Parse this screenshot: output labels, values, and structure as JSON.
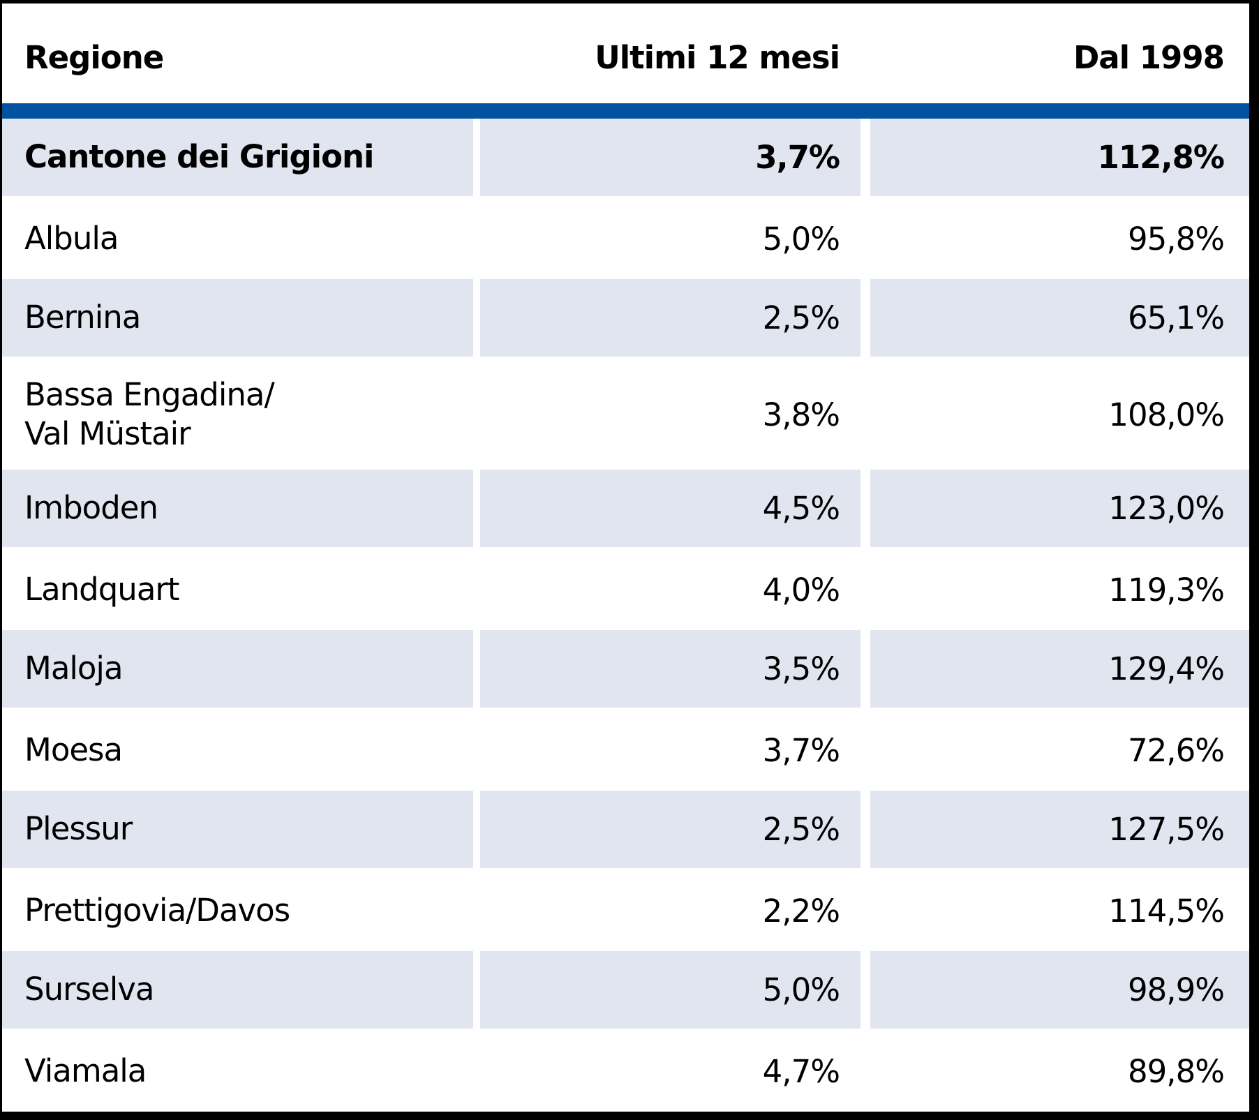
{
  "colors": {
    "header_bar": "#0152a0",
    "row_shade": "#e1e5f0",
    "frame": "#000000",
    "text": "#000000"
  },
  "chart_data": {
    "type": "table",
    "columns": [
      "Regione",
      "Ultimi 12 mesi",
      "Dal 1998"
    ],
    "rows": [
      {
        "region": "Cantone dei Grigioni",
        "ultimi_12_mesi": "3,7%",
        "dal_1998": "112,8%",
        "bold": true
      },
      {
        "region": "Albula",
        "ultimi_12_mesi": "5,0%",
        "dal_1998": "95,8%"
      },
      {
        "region": "Bernina",
        "ultimi_12_mesi": "2,5%",
        "dal_1998": "65,1%"
      },
      {
        "region": "Bassa Engadina/\nVal Müstair",
        "ultimi_12_mesi": "3,8%",
        "dal_1998": "108,0%"
      },
      {
        "region": "Imboden",
        "ultimi_12_mesi": "4,5%",
        "dal_1998": "123,0%"
      },
      {
        "region": "Landquart",
        "ultimi_12_mesi": "4,0%",
        "dal_1998": "119,3%"
      },
      {
        "region": "Maloja",
        "ultimi_12_mesi": "3,5%",
        "dal_1998": "129,4%"
      },
      {
        "region": "Moesa",
        "ultimi_12_mesi": "3,7%",
        "dal_1998": "72,6%"
      },
      {
        "region": "Plessur",
        "ultimi_12_mesi": "2,5%",
        "dal_1998": "127,5%"
      },
      {
        "region": "Prettigovia/Davos",
        "ultimi_12_mesi": "2,2%",
        "dal_1998": "114,5%"
      },
      {
        "region": "Surselva",
        "ultimi_12_mesi": "5,0%",
        "dal_1998": "98,9%"
      },
      {
        "region": "Viamala",
        "ultimi_12_mesi": "4,7%",
        "dal_1998": "89,8%"
      }
    ]
  }
}
